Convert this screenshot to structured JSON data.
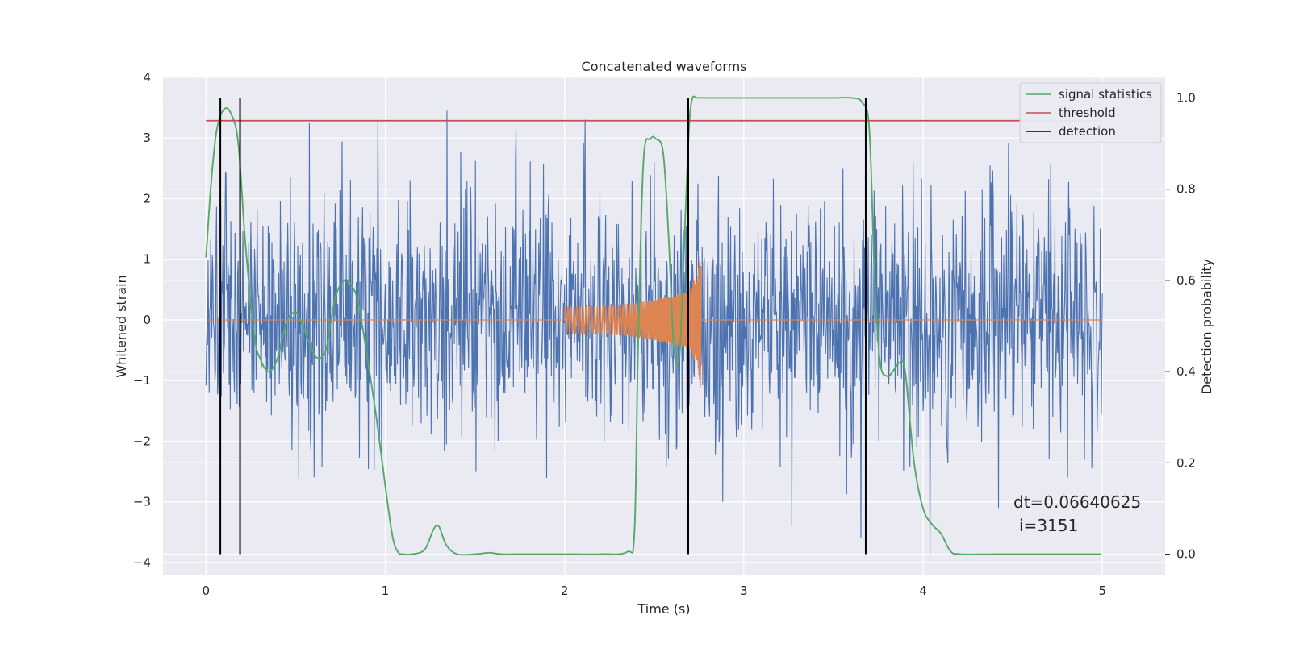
{
  "chart_data": {
    "type": "line",
    "title": "Concatenated waveforms",
    "xlabel": "Time (s)",
    "ylabel": "Whitened strain",
    "y2label": "Detection probability",
    "xlim": [
      -0.24,
      5.35
    ],
    "ylim": [
      -4.2,
      4.0
    ],
    "y2lim": [
      -0.045,
      1.045
    ],
    "xticks": [
      "0",
      "1",
      "2",
      "3",
      "4",
      "5"
    ],
    "xtick_values": [
      0,
      1,
      2,
      3,
      4,
      5
    ],
    "yticks": [
      "4",
      "3",
      "2",
      "1",
      "0",
      "−1",
      "−2",
      "−3",
      "−4"
    ],
    "ytick_values": [
      4,
      3,
      2,
      1,
      0,
      -1,
      -2,
      -3,
      -4
    ],
    "y2ticks": [
      "1.0",
      "0.8",
      "0.6",
      "0.4",
      "0.2",
      "0.0"
    ],
    "y2tick_values": [
      1.0,
      0.8,
      0.6,
      0.4,
      0.2,
      0.0
    ],
    "grid": true,
    "legend_position": "top-right",
    "colors": {
      "background": "#eaeaf2",
      "grid": "#ffffff",
      "strain": "#4c72b0",
      "injection": "#dd8452",
      "signal_statistics": "#55a868",
      "threshold": "#c44e52",
      "detection": "#000000"
    },
    "series": [
      {
        "name": "signal statistics",
        "axis": "right",
        "x": [
          0.0,
          0.03,
          0.06,
          0.1,
          0.14,
          0.18,
          0.22,
          0.27,
          0.3,
          0.35,
          0.4,
          0.45,
          0.5,
          0.53,
          0.58,
          0.62,
          0.67,
          0.72,
          0.77,
          0.81,
          0.85,
          0.9,
          0.95,
          1.0,
          1.04,
          1.07,
          1.1,
          1.15,
          1.22,
          1.27,
          1.3,
          1.34,
          1.4,
          1.5,
          1.58,
          1.65,
          1.8,
          2.0,
          2.2,
          2.35,
          2.39,
          2.41,
          2.44,
          2.48,
          2.51,
          2.55,
          2.58,
          2.61,
          2.64,
          2.66,
          2.69,
          2.71,
          2.74,
          2.8,
          3.0,
          3.3,
          3.5,
          3.6,
          3.66,
          3.7,
          3.73,
          3.76,
          3.8,
          3.83,
          3.87,
          3.9,
          3.95,
          4.0,
          4.05,
          4.1,
          4.15,
          4.2,
          4.4,
          4.6,
          4.8,
          4.99
        ],
        "values": [
          0.65,
          0.82,
          0.93,
          0.975,
          0.965,
          0.9,
          0.68,
          0.48,
          0.43,
          0.4,
          0.43,
          0.51,
          0.53,
          0.51,
          0.46,
          0.43,
          0.45,
          0.56,
          0.6,
          0.59,
          0.55,
          0.43,
          0.3,
          0.15,
          0.04,
          0.005,
          0.0,
          0.0,
          0.01,
          0.055,
          0.06,
          0.02,
          0.0,
          0.0,
          0.003,
          0.0,
          0.0,
          0.0,
          0.0,
          0.005,
          0.05,
          0.45,
          0.86,
          0.91,
          0.91,
          0.88,
          0.7,
          0.45,
          0.43,
          0.6,
          0.9,
          0.995,
          1.0,
          1.0,
          1.0,
          1.0,
          1.0,
          1.0,
          0.99,
          0.93,
          0.6,
          0.42,
          0.39,
          0.4,
          0.42,
          0.4,
          0.2,
          0.1,
          0.065,
          0.045,
          0.008,
          0.0,
          0.0,
          0.0,
          0.0,
          0.0
        ]
      },
      {
        "name": "threshold",
        "axis": "right",
        "x": [
          0.0,
          5.0
        ],
        "values": [
          0.95,
          0.95
        ]
      },
      {
        "name": "detection",
        "axis": "right",
        "x_positions": [
          0.08,
          0.19,
          2.69,
          3.68
        ],
        "y_range": [
          0.0,
          1.0
        ]
      },
      {
        "name": "",
        "axis": "left",
        "description_type": "noise",
        "x_range": [
          0.0,
          5.0
        ],
        "typical_amplitude": 1.0,
        "spike_values": [
          3.65,
          3.25,
          3.3,
          3.45,
          3.15,
          3.3,
          2.6,
          -3.0,
          -3.4,
          -3.6,
          -3.9,
          -3.1,
          -2.6
        ]
      },
      {
        "name": "",
        "axis": "left",
        "description_type": "chirp",
        "x_range": [
          2.0,
          2.76
        ],
        "amplitude_start": 0.22,
        "amplitude_peak": 1.05,
        "amplitude_min_peak": -1.1
      }
    ],
    "legend": [
      "signal statistics",
      "threshold",
      "detection"
    ],
    "annotations": [
      "dt=0.06640625",
      "i=3151"
    ]
  }
}
